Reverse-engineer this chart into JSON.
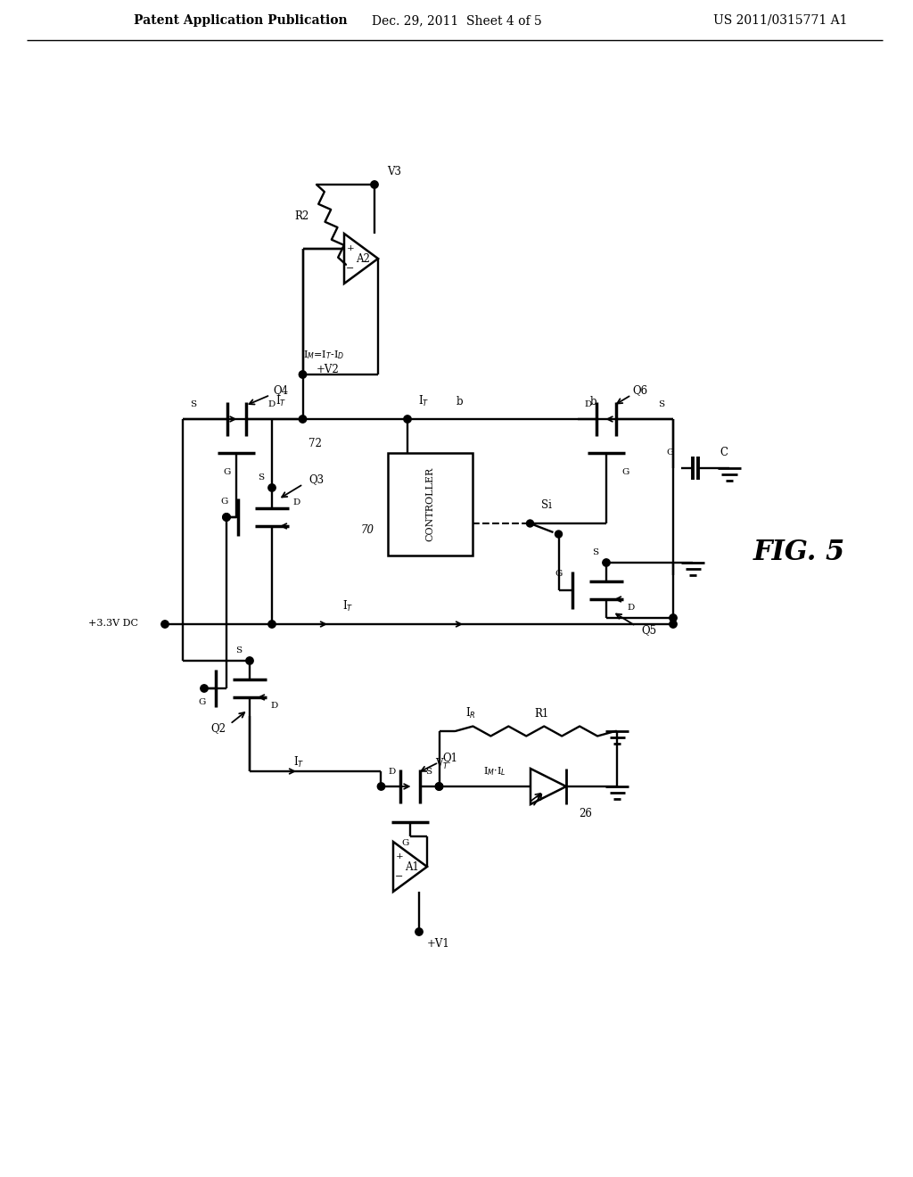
{
  "header_left": "Patent Application Publication",
  "header_center": "Dec. 29, 2011  Sheet 4 of 5",
  "header_right": "US 2011/0315771 A1",
  "fig_label": "FIG. 5",
  "bg_color": "#ffffff"
}
